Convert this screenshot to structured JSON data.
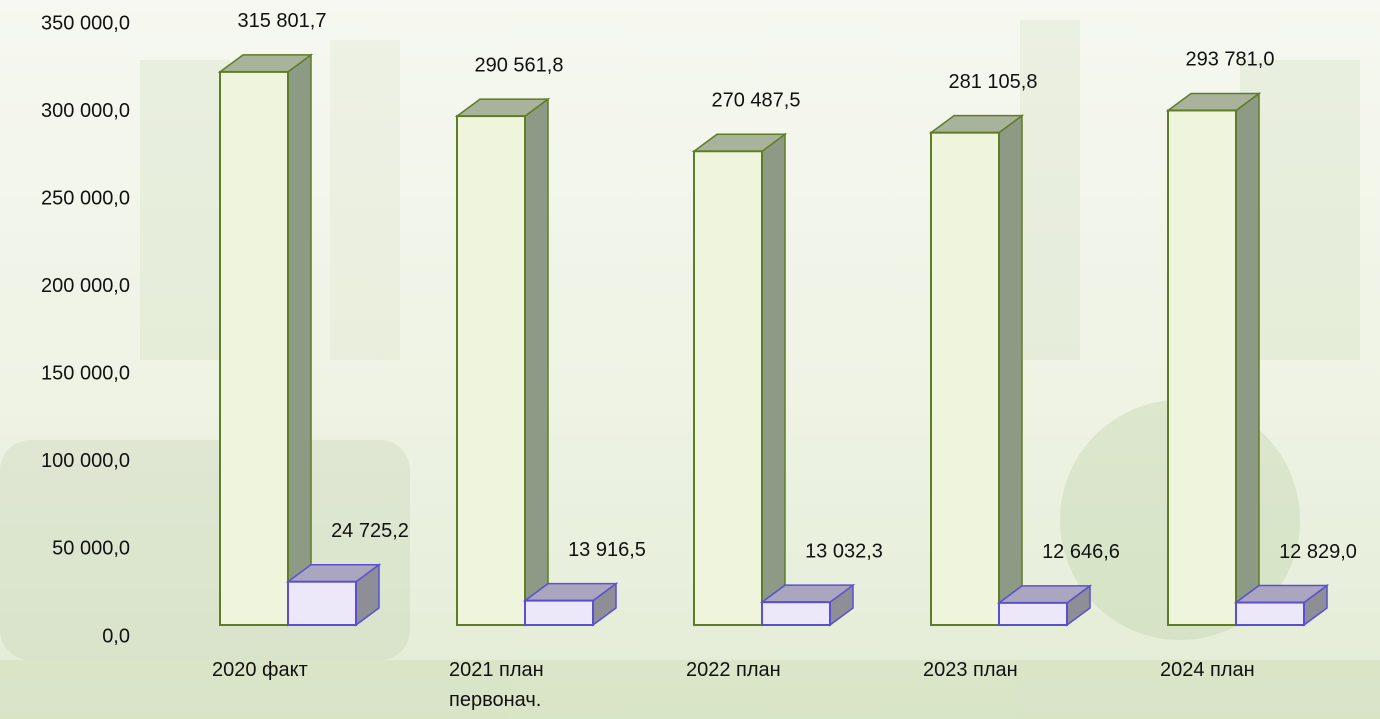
{
  "chart_data": {
    "type": "bar3d",
    "categories": [
      "2020 факт",
      "2021 план\nпервонач.",
      "2022 план",
      "2023 план",
      "2024 план"
    ],
    "series": [
      {
        "color": "#eef5dc",
        "values": [
          315801.7,
          290561.8,
          270487.5,
          281105.8,
          293781.0
        ],
        "value_labels": [
          "315 801,7",
          "290 561,8",
          "270 487,5",
          "281 105,8",
          "293 781,0"
        ]
      },
      {
        "color": "#ece8fa",
        "values": [
          24725.2,
          13916.5,
          13032.3,
          12646.6,
          12829.0
        ],
        "value_labels": [
          "24 725,2",
          "13 916,5",
          "13 032,3",
          "12 646,6",
          "12 829,0"
        ]
      }
    ],
    "ylim": [
      0,
      350000
    ],
    "yticks": [
      {
        "value": 0,
        "label": "0,0"
      },
      {
        "value": 50000,
        "label": "50 000,0"
      },
      {
        "value": 100000,
        "label": "100 000,0"
      },
      {
        "value": 150000,
        "label": "150 000,0"
      },
      {
        "value": 200000,
        "label": "200 000,0"
      },
      {
        "value": 250000,
        "label": "250 000,0"
      },
      {
        "value": 300000,
        "label": "300 000,0"
      },
      {
        "value": 350000,
        "label": "350 000,0"
      }
    ]
  }
}
